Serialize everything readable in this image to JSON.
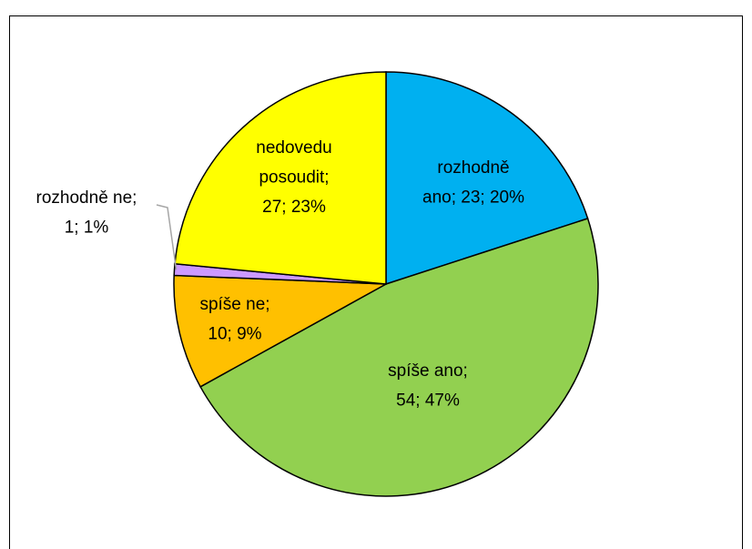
{
  "chart_data": {
    "type": "pie",
    "categories": [
      "rozhodně ano",
      "spíše ano",
      "spíše ne",
      "rozhodně ne",
      "nedovedu posoudit"
    ],
    "values": [
      23,
      54,
      10,
      1,
      27
    ],
    "value_labels": [
      [
        "rozhodně",
        "ano; 23; 20%"
      ],
      [
        "spíše ano;",
        "54; 47%"
      ],
      [
        "spíše ne;",
        "10; 9%"
      ],
      [
        "rozhodně ne;",
        "1; 1%"
      ],
      [
        "nedovedu",
        "posoudit;",
        "27; 23%"
      ]
    ],
    "colors": [
      "#00b0f0",
      "#92d050",
      "#ffc000",
      "#cc99ff",
      "#ffff00"
    ]
  }
}
